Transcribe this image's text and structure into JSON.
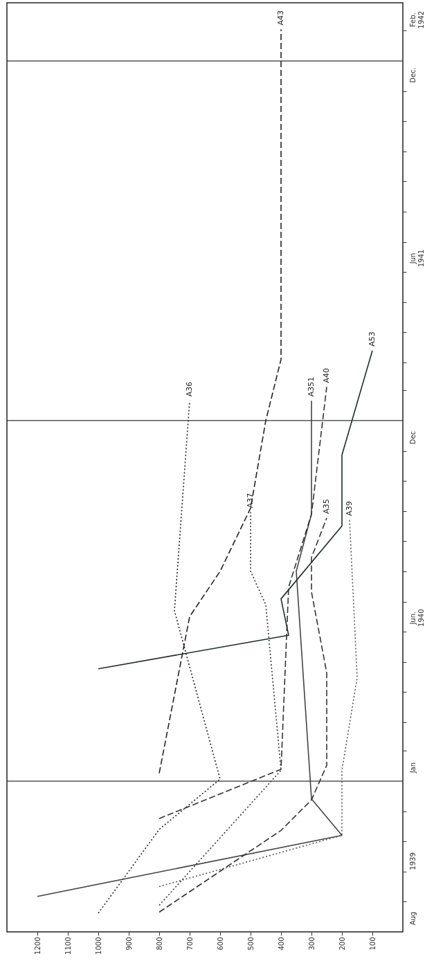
{
  "chart_data": {
    "type": "line",
    "orientation": "horizontal",
    "ylim": [
      "1939-08-01",
      "1942-03-01"
    ],
    "xlim": [
      1300,
      0
    ],
    "xticks": [
      1200,
      1100,
      1000,
      900,
      800,
      700,
      600,
      500,
      400,
      300,
      200,
      100
    ],
    "yticks": [
      {
        "value": "1939-08-15",
        "label": "Aug"
      },
      {
        "value": "1939-10-12",
        "label": "1939"
      },
      {
        "value": "1940-01-15",
        "label": "Jan"
      },
      {
        "value": "1940-06-15",
        "label": "Jun.\n1940"
      },
      {
        "value": "1940-12-15",
        "label": "Dec"
      },
      {
        "value": "1941-06-15",
        "label": "Jun\n1941"
      },
      {
        "value": "1941-12-18",
        "label": "Dec."
      },
      {
        "value": "1942-02-12",
        "label": "Feb.\n1942"
      },
      {
        "value": "1939-09-01",
        "label": null
      },
      {
        "value": "1939-10-01",
        "label": null
      },
      {
        "value": "1939-11-01",
        "label": null
      },
      {
        "value": "1939-12-01",
        "label": null
      },
      {
        "value": "1940-02-01",
        "label": null
      },
      {
        "value": "1940-03-01",
        "label": null
      },
      {
        "value": "1940-04-01",
        "label": null
      },
      {
        "value": "1940-05-01",
        "label": null
      },
      {
        "value": "1940-06-01",
        "label": null
      },
      {
        "value": "1940-07-01",
        "label": null
      },
      {
        "value": "1940-08-01",
        "label": null
      },
      {
        "value": "1940-09-01",
        "label": null
      },
      {
        "value": "1940-10-01",
        "label": null
      },
      {
        "value": "1940-11-01",
        "label": null
      },
      {
        "value": "1940-12-01",
        "label": null
      },
      {
        "value": "1941-02-01",
        "label": null
      },
      {
        "value": "1941-03-01",
        "label": null
      },
      {
        "value": "1941-04-01",
        "label": null
      },
      {
        "value": "1941-05-01",
        "label": null
      },
      {
        "value": "1941-06-01",
        "label": null
      },
      {
        "value": "1941-07-01",
        "label": null
      },
      {
        "value": "1941-08-01",
        "label": null
      },
      {
        "value": "1941-09-01",
        "label": null
      },
      {
        "value": "1941-10-01",
        "label": null
      },
      {
        "value": "1941-11-01",
        "label": null
      },
      {
        "value": "1941-12-01",
        "label": null
      },
      {
        "value": "1942-02-01",
        "label": null
      }
    ],
    "grid": false,
    "legend": false,
    "ref_lines": [
      {
        "axis": "y",
        "value": "1940-01-01",
        "label": null
      },
      {
        "axis": "y",
        "value": "1941-01-01",
        "label": null
      },
      {
        "axis": "y",
        "value": "1942-01-01",
        "label": null
      }
    ],
    "series": [
      {
        "name": "A36",
        "color": "#222222",
        "line_style": "dotted",
        "x": [
          "1939-08-20",
          "1939-11-13",
          "1940-01-03",
          "1940-06-22",
          "1941-01-21"
        ],
        "values": [
          1000,
          800,
          600,
          750,
          700
        ]
      },
      {
        "name": "A37",
        "color": "#333333",
        "line_style": "dotted",
        "x": [
          "1939-08-28",
          "1940-01-12",
          "1940-06-28",
          "1940-08-01",
          "1940-09-30"
        ],
        "values": [
          800,
          400,
          450,
          500,
          500
        ]
      },
      {
        "name": "A43",
        "color": "#222222",
        "line_style": "dashed",
        "x": [
          "1940-01-09",
          "1940-06-16",
          "1940-08-01",
          "1940-10-04",
          "1941-01-01",
          "1941-03-04",
          "1942-02-02"
        ],
        "values": [
          800,
          700,
          600,
          500,
          450,
          400,
          400
        ]
      },
      {
        "name": "A351",
        "color": "#444444",
        "line_style": "solid",
        "x": [
          "1939-09-06",
          "1939-11-07",
          "1939-12-14",
          "1940-08-01",
          "1940-09-28",
          "1941-01-21"
        ],
        "values": [
          1200,
          200,
          300,
          350,
          300,
          300
        ]
      },
      {
        "name": "A40",
        "color": "#333333",
        "line_style": "dashed",
        "x": [
          "1939-11-24",
          "1940-01-13",
          "1940-07-16",
          "1940-09-28",
          "1941-02-04"
        ],
        "values": [
          800,
          400,
          375,
          300,
          250
        ]
      },
      {
        "name": "A35",
        "color": "#333333",
        "line_style": "dashed",
        "x": [
          "1939-08-21",
          "1939-11-12",
          "1939-12-13",
          "1940-01-17",
          "1940-04-20",
          "1940-07-11",
          "1940-08-15",
          "1940-09-24"
        ],
        "values": [
          800,
          400,
          300,
          250,
          250,
          300,
          300,
          250
        ]
      },
      {
        "name": "A39",
        "color": "#555555",
        "line_style": "dotted",
        "x": [
          "1939-09-16",
          "1939-11-07",
          "1940-01-12",
          "1940-04-15",
          "1940-09-22"
        ],
        "values": [
          800,
          200,
          200,
          150,
          175
        ]
      },
      {
        "name": "A53",
        "color": "#1f2a2a",
        "line_style": "solid",
        "x": [
          "1940-04-24",
          "1940-05-28",
          "1940-07-04",
          "1940-09-16",
          "1940-11-27",
          "1941-03-13"
        ],
        "values": [
          1000,
          375,
          400,
          200,
          200,
          100
        ]
      }
    ]
  }
}
